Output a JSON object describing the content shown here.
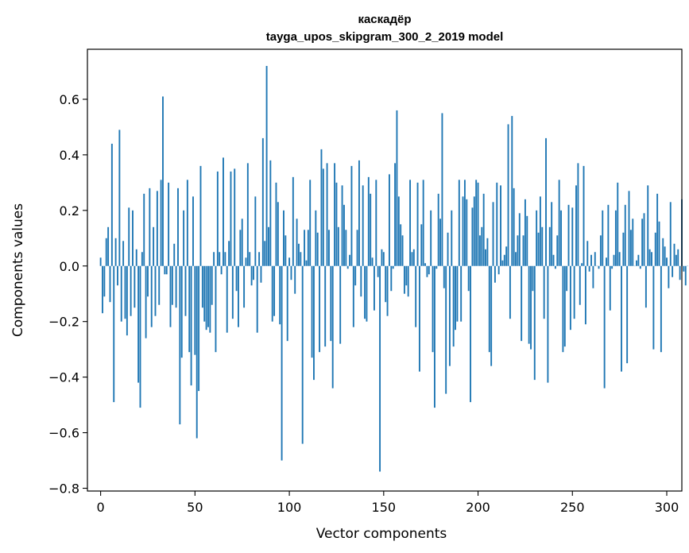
{
  "chart_data": {
    "type": "bar",
    "title": "каскадёр",
    "subtitle": "tayga_upos_skipgram_300_2_2019 model",
    "xlabel": "Vector components",
    "ylabel": "Components values",
    "xlim": [
      -7,
      308
    ],
    "ylim": [
      -0.81,
      0.78
    ],
    "xticks": [
      0,
      50,
      100,
      150,
      200,
      250,
      300
    ],
    "xtick_labels": [
      "0",
      "50",
      "100",
      "150",
      "200",
      "250",
      "300"
    ],
    "yticks": [
      -0.8,
      -0.6,
      -0.4,
      -0.2,
      0.0,
      0.2,
      0.4,
      0.6
    ],
    "ytick_labels": [
      "−0.8",
      "−0.6",
      "−0.4",
      "−0.2",
      "0.0",
      "0.2",
      "0.4",
      "0.6"
    ],
    "bar_color": "#1f77b4",
    "grid": false,
    "values": [
      0.03,
      -0.17,
      -0.11,
      0.1,
      0.14,
      -0.13,
      0.44,
      -0.49,
      0.1,
      -0.07,
      0.49,
      -0.2,
      0.09,
      -0.19,
      -0.25,
      0.21,
      -0.18,
      0.2,
      -0.15,
      0.06,
      -0.42,
      -0.51,
      0.05,
      0.26,
      -0.26,
      -0.11,
      0.28,
      -0.22,
      0.14,
      -0.18,
      0.27,
      -0.14,
      0.31,
      0.61,
      -0.03,
      -0.03,
      0.3,
      -0.22,
      -0.14,
      0.08,
      -0.15,
      0.28,
      -0.57,
      -0.33,
      0.2,
      -0.18,
      0.31,
      -0.31,
      -0.43,
      0.25,
      -0.32,
      -0.62,
      -0.45,
      0.36,
      -0.15,
      -0.2,
      -0.23,
      -0.22,
      -0.24,
      -0.14,
      0.05,
      -0.31,
      0.34,
      0.05,
      -0.03,
      0.39,
      0.05,
      -0.24,
      0.09,
      0.34,
      -0.19,
      0.35,
      -0.09,
      -0.22,
      0.13,
      0.17,
      -0.15,
      0.03,
      0.37,
      0.05,
      -0.07,
      -0.05,
      0.25,
      -0.24,
      0.05,
      -0.06,
      0.46,
      0.09,
      0.72,
      0.14,
      0.38,
      -0.2,
      -0.18,
      0.3,
      0.23,
      -0.21,
      -0.7,
      0.2,
      0.11,
      -0.27,
      0.03,
      -0.05,
      0.32,
      -0.1,
      0.17,
      0.08,
      0.05,
      -0.64,
      0.13,
      0.02,
      0.13,
      0.31,
      -0.33,
      -0.41,
      0.2,
      0.12,
      -0.31,
      0.42,
      0.35,
      -0.29,
      0.37,
      0.13,
      -0.27,
      -0.44,
      0.37,
      0.3,
      0.14,
      -0.28,
      0.29,
      0.22,
      0.13,
      -0.01,
      0.04,
      0.36,
      -0.22,
      -0.07,
      0.13,
      0.38,
      -0.11,
      0.29,
      -0.19,
      -0.2,
      0.32,
      0.26,
      0.03,
      -0.16,
      0.31,
      -0.04,
      -0.74,
      0.06,
      0.05,
      -0.13,
      -0.18,
      0.33,
      -0.09,
      -0.01,
      0.37,
      0.56,
      0.25,
      0.15,
      0.11,
      -0.1,
      -0.07,
      -0.11,
      0.31,
      0.05,
      0.06,
      -0.22,
      0.3,
      -0.38,
      0.15,
      0.31,
      0.01,
      -0.04,
      -0.03,
      0.2,
      -0.31,
      -0.51,
      -0.01,
      0.26,
      0.17,
      0.55,
      -0.08,
      -0.46,
      0.12,
      -0.36,
      0.2,
      -0.29,
      -0.23,
      -0.2,
      0.31,
      -0.2,
      0.25,
      0.31,
      0.24,
      -0.09,
      -0.49,
      0.21,
      0.25,
      0.31,
      0.3,
      0.11,
      0.14,
      0.26,
      0.06,
      0.1,
      -0.31,
      -0.36,
      0.23,
      -0.06,
      0.3,
      -0.03,
      0.29,
      0.02,
      0.04,
      0.07,
      0.51,
      -0.19,
      0.54,
      0.28,
      0.05,
      0.11,
      0.19,
      -0.27,
      0.11,
      0.24,
      0.18,
      -0.28,
      -0.3,
      -0.09,
      -0.41,
      0.2,
      0.12,
      0.25,
      0.14,
      -0.19,
      0.46,
      -0.42,
      0.14,
      0.23,
      0.04,
      -0.01,
      0.11,
      0.31,
      0.2,
      -0.31,
      -0.29,
      -0.09,
      0.22,
      -0.23,
      0.21,
      -0.19,
      0.29,
      0.37,
      -0.14,
      0.01,
      0.36,
      -0.21,
      0.09,
      -0.02,
      0.04,
      -0.08,
      0.05,
      0.0,
      -0.01,
      0.11,
      0.2,
      -0.44,
      0.03,
      0.22,
      -0.16,
      -0.01,
      0.04,
      0.2,
      0.3,
      0.05,
      -0.38,
      0.12,
      0.22,
      -0.35,
      0.27,
      0.13,
      0.17,
      0.0,
      0.02,
      0.04,
      -0.01,
      0.17,
      0.19,
      -0.15,
      0.29,
      0.06,
      0.05,
      -0.3,
      0.12,
      0.26,
      0.16,
      -0.31,
      0.1,
      0.07,
      0.03,
      -0.08,
      0.23,
      -0.04,
      0.08,
      0.04,
      0.06,
      -0.05,
      0.24,
      -0.02,
      -0.07,
      0.0
    ]
  }
}
